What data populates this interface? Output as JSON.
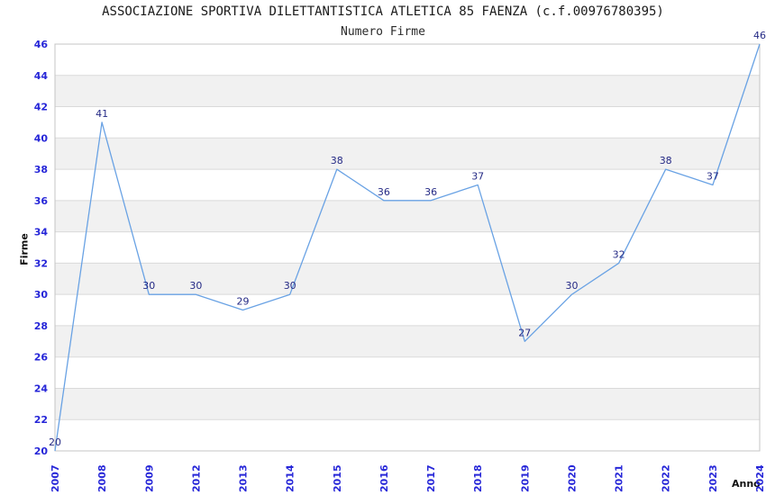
{
  "header": {
    "title": "ASSOCIAZIONE SPORTIVA DILETTANTISTICA ATLETICA 85 FAENZA (c.f.00976780395)",
    "subtitle": "Numero Firme"
  },
  "chart_data": {
    "type": "line",
    "title": "ASSOCIAZIONE SPORTIVA DILETTANTISTICA ATLETICA 85 FAENZA (c.f.00976780395)",
    "subtitle": "Numero Firme",
    "xlabel": "Anno",
    "ylabel": "Firme",
    "categories": [
      "2007",
      "2008",
      "2009",
      "2012",
      "2013",
      "2014",
      "2015",
      "2016",
      "2017",
      "2018",
      "2019",
      "2020",
      "2021",
      "2022",
      "2023",
      "2024"
    ],
    "values": [
      20,
      41,
      30,
      30,
      29,
      30,
      38,
      36,
      36,
      37,
      27,
      30,
      32,
      38,
      37,
      46
    ],
    "ylim": [
      20,
      46
    ],
    "ytick_step": 2,
    "yticks": [
      20,
      22,
      24,
      26,
      28,
      30,
      32,
      34,
      36,
      38,
      40,
      42,
      44,
      46
    ],
    "grid": "horizontal gridlines with alternating gray bands every 2 units",
    "legend": "none",
    "data_labels": true,
    "x_tick_rotation": -90,
    "colors": {
      "line": "#69a2e4",
      "tick_label": "#2626d8",
      "data_label": "#252a85",
      "band": "#f1f1f1",
      "grid_line": "#dadada",
      "border": "#c4c4c4",
      "title_color": "#1a1a1a"
    }
  }
}
